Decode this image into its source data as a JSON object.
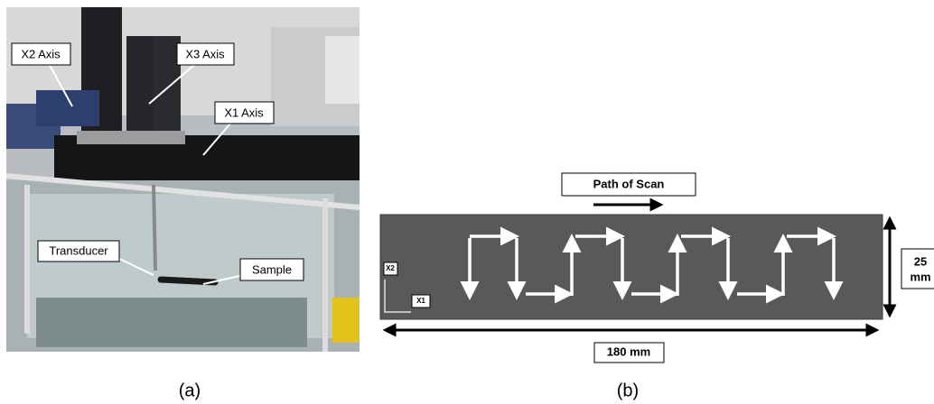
{
  "panel_a": {
    "labels": [
      "X2 Axis",
      "X3 Axis",
      "X1 Axis",
      "Transducer",
      "Sample"
    ],
    "caption": "(a)"
  },
  "panel_b": {
    "path_label": "Path of Scan",
    "axis_x2": "X2",
    "axis_x1": "X1",
    "height_label": [
      "25",
      "mm"
    ],
    "width_label": "180 mm",
    "caption": "(b)"
  }
}
